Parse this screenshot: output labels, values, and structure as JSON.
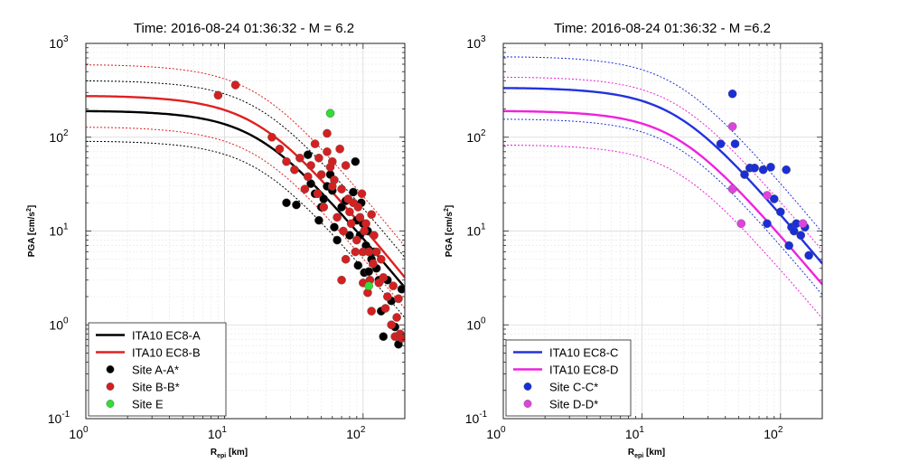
{
  "chart_data": [
    {
      "type": "scatter",
      "title": "Time: 2016-08-24 01:36:32 - M = 6.2",
      "xlabel": "R",
      "xlabel_sub": "epi",
      "xlabel_unit": " [km]",
      "ylabel": "PGA [cm/s",
      "ylabel_sup": "2",
      "ylabel_end": "]",
      "xscale": "log",
      "yscale": "log",
      "xlim": [
        1,
        200
      ],
      "ylim": [
        0.1,
        1000
      ],
      "grid": true,
      "legend_position": "bottom-left",
      "xticks": [
        {
          "base": "10",
          "exp": "0"
        },
        {
          "base": "10",
          "exp": "1"
        },
        {
          "base": "10",
          "exp": "2"
        }
      ],
      "yticks": [
        {
          "base": "10",
          "exp": "-1"
        },
        {
          "base": "10",
          "exp": "0"
        },
        {
          "base": "10",
          "exp": "1"
        },
        {
          "base": "10",
          "exp": "2"
        },
        {
          "base": "10",
          "exp": "3"
        }
      ],
      "curves": [
        {
          "name": "ITA10 EC8-A",
          "color": "#000000",
          "style": "solid",
          "flat": 190,
          "y200": 2.5,
          "sigma": 2.1,
          "legend": true
        },
        {
          "name": "ITA10 EC8-B",
          "color": "#e02020",
          "style": "solid",
          "flat": 275,
          "y200": 3.2,
          "sigma": 2.15,
          "legend": true
        }
      ],
      "series": [
        {
          "name": "Site A-A*",
          "color": "#000000",
          "points": [
            [
              28,
              20
            ],
            [
              33,
              19
            ],
            [
              40,
              65
            ],
            [
              42,
              32
            ],
            [
              45,
              25
            ],
            [
              48,
              13
            ],
            [
              50,
              18
            ],
            [
              52,
              22
            ],
            [
              55,
              30
            ],
            [
              58,
              40
            ],
            [
              60,
              27
            ],
            [
              62,
              11
            ],
            [
              65,
              8
            ],
            [
              70,
              18
            ],
            [
              75,
              21
            ],
            [
              80,
              9
            ],
            [
              85,
              26
            ],
            [
              88,
              55
            ],
            [
              90,
              13
            ],
            [
              92,
              4.3
            ],
            [
              95,
              9
            ],
            [
              97,
              20
            ],
            [
              100,
              12
            ],
            [
              102,
              3.6
            ],
            [
              105,
              7
            ],
            [
              108,
              10
            ],
            [
              110,
              3.7
            ],
            [
              115,
              5
            ],
            [
              120,
              6
            ],
            [
              125,
              4
            ],
            [
              130,
              3
            ],
            [
              135,
              1.4
            ],
            [
              140,
              0.75
            ],
            [
              150,
              3
            ],
            [
              160,
              1.8
            ],
            [
              170,
              0.95
            ],
            [
              180,
              0.62
            ],
            [
              190,
              2.4
            ]
          ]
        },
        {
          "name": "Site B-B*",
          "color": "#d42020",
          "points": [
            [
              9,
              280
            ],
            [
              12,
              360
            ],
            [
              22,
              100
            ],
            [
              25,
              75
            ],
            [
              28,
              55
            ],
            [
              32,
              45
            ],
            [
              35,
              60
            ],
            [
              38,
              28
            ],
            [
              40,
              38
            ],
            [
              42,
              50
            ],
            [
              45,
              85
            ],
            [
              47,
              25
            ],
            [
              50,
              40
            ],
            [
              52,
              18
            ],
            [
              55,
              70
            ],
            [
              58,
              48
            ],
            [
              60,
              55
            ],
            [
              62,
              35
            ],
            [
              65,
              14
            ],
            [
              68,
              75
            ],
            [
              70,
              28
            ],
            [
              72,
              10
            ],
            [
              75,
              50
            ],
            [
              78,
              22
            ],
            [
              80,
              16
            ],
            [
              82,
              12
            ],
            [
              85,
              20
            ],
            [
              88,
              6
            ],
            [
              90,
              8
            ],
            [
              92,
              18
            ],
            [
              95,
              14
            ],
            [
              98,
              25
            ],
            [
              100,
              6
            ],
            [
              102,
              10
            ],
            [
              105,
              12
            ],
            [
              108,
              2.2
            ],
            [
              110,
              6
            ],
            [
              112,
              3
            ],
            [
              115,
              15
            ],
            [
              118,
              4.5
            ],
            [
              120,
              9
            ],
            [
              125,
              6
            ],
            [
              130,
              2.8
            ],
            [
              135,
              5
            ],
            [
              140,
              3.2
            ],
            [
              145,
              1.5
            ],
            [
              150,
              2
            ],
            [
              160,
              1
            ],
            [
              165,
              2.6
            ],
            [
              170,
              0.75
            ],
            [
              175,
              1.2
            ],
            [
              180,
              1.9
            ],
            [
              185,
              0.8
            ],
            [
              190,
              0.72
            ],
            [
              60,
              30
            ],
            [
              48,
              60
            ],
            [
              55,
              110
            ],
            [
              70,
              3
            ],
            [
              100,
              2.8
            ],
            [
              75,
              5
            ],
            [
              115,
              1.4
            ]
          ]
        },
        {
          "name": "Site E",
          "color": "#33dd33",
          "points": [
            [
              58,
              180
            ],
            [
              110,
              2.6
            ]
          ]
        }
      ],
      "legend_order": [
        "ITA10 EC8-A",
        "ITA10 EC8-B",
        "Site A-A*",
        "Site B-B*",
        "Site E"
      ]
    },
    {
      "type": "scatter",
      "title": "Time: 2016-08-24 01:36:32 - M =6.2",
      "xlabel": "R",
      "xlabel_sub": "epi",
      "xlabel_unit": " [km]",
      "ylabel": "PGA [cm/s",
      "ylabel_sup": "2",
      "ylabel_end": "]",
      "xscale": "log",
      "yscale": "log",
      "xlim": [
        1,
        200
      ],
      "ylim": [
        0.1,
        1000
      ],
      "grid": true,
      "legend_position": "bottom-left",
      "xticks": [
        {
          "base": "10",
          "exp": "0"
        },
        {
          "base": "10",
          "exp": "1"
        },
        {
          "base": "10",
          "exp": "2"
        }
      ],
      "yticks": [
        {
          "base": "10",
          "exp": "-1"
        },
        {
          "base": "10",
          "exp": "0"
        },
        {
          "base": "10",
          "exp": "1"
        },
        {
          "base": "10",
          "exp": "2"
        },
        {
          "base": "10",
          "exp": "3"
        }
      ],
      "curves": [
        {
          "name": "ITA10 EC8-C",
          "color": "#2233dd",
          "style": "solid",
          "flat": 335,
          "y200": 4.5,
          "sigma": 2.15,
          "legend": true
        },
        {
          "name": "ITA10 EC8-D",
          "color": "#ee22dd",
          "style": "solid",
          "flat": 190,
          "y200": 2.7,
          "sigma": 2.3,
          "legend": true
        }
      ],
      "series": [
        {
          "name": "Site C-C*",
          "color": "#1a2ed8",
          "points": [
            [
              37,
              85
            ],
            [
              45,
              290
            ],
            [
              47,
              85
            ],
            [
              55,
              40
            ],
            [
              60,
              47
            ],
            [
              65,
              47
            ],
            [
              75,
              45
            ],
            [
              80,
              12
            ],
            [
              85,
              48
            ],
            [
              90,
              22
            ],
            [
              100,
              16
            ],
            [
              110,
              45
            ],
            [
              115,
              7
            ],
            [
              120,
              11
            ],
            [
              125,
              10
            ],
            [
              130,
              12
            ],
            [
              140,
              9
            ],
            [
              150,
              11
            ],
            [
              160,
              5.5
            ]
          ]
        },
        {
          "name": "Site D-D*",
          "color": "#dd44dd",
          "points": [
            [
              45,
              130
            ],
            [
              45,
              28
            ],
            [
              52,
              12
            ],
            [
              80,
              24
            ],
            [
              145,
              12
            ]
          ]
        }
      ],
      "legend_order": [
        "ITA10 EC8-C",
        "ITA10 EC8-D",
        "Site C-C*",
        "Site D-D*"
      ]
    }
  ]
}
